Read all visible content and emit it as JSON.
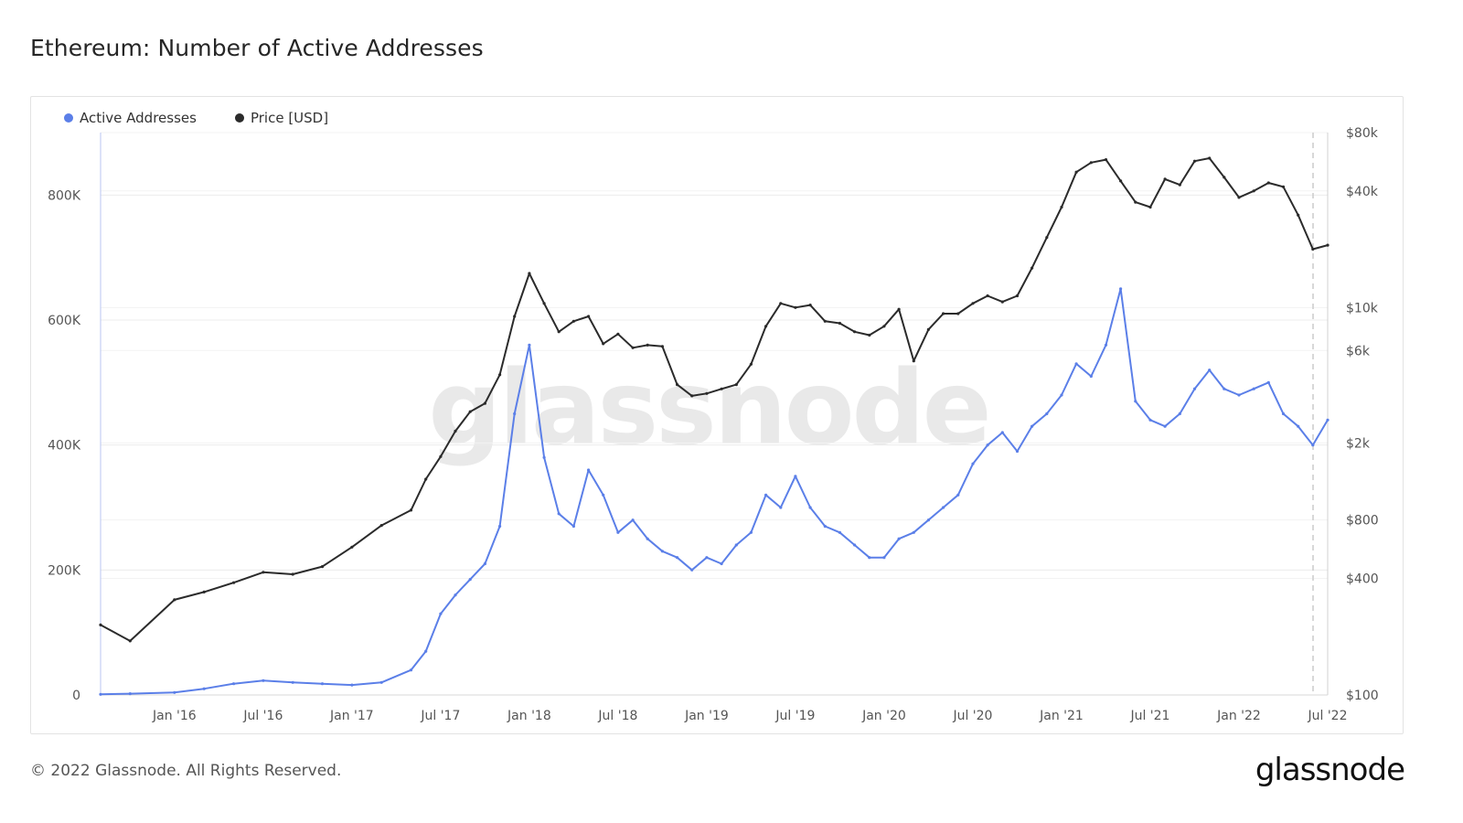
{
  "title": "Ethereum: Number of Active Addresses",
  "footer": "© 2022 Glassnode. All Rights Reserved.",
  "brand": "glassnode",
  "watermark": "glassnode",
  "chart_data": {
    "type": "line",
    "title": "Ethereum: Number of Active Addresses",
    "series": [
      {
        "name": "Active Addresses",
        "color": "#5b7fe8",
        "axis": "left",
        "x": [
          "2015-08",
          "2015-10",
          "2016-01",
          "2016-03",
          "2016-05",
          "2016-07",
          "2016-09",
          "2016-11",
          "2017-01",
          "2017-03",
          "2017-05",
          "2017-06",
          "2017-07",
          "2017-08",
          "2017-09",
          "2017-10",
          "2017-11",
          "2017-12",
          "2018-01",
          "2018-02",
          "2018-03",
          "2018-04",
          "2018-05",
          "2018-06",
          "2018-07",
          "2018-08",
          "2018-09",
          "2018-10",
          "2018-11",
          "2018-12",
          "2019-01",
          "2019-02",
          "2019-03",
          "2019-04",
          "2019-05",
          "2019-06",
          "2019-07",
          "2019-08",
          "2019-09",
          "2019-10",
          "2019-11",
          "2019-12",
          "2020-01",
          "2020-02",
          "2020-03",
          "2020-04",
          "2020-05",
          "2020-06",
          "2020-07",
          "2020-08",
          "2020-09",
          "2020-10",
          "2020-11",
          "2020-12",
          "2021-01",
          "2021-02",
          "2021-03",
          "2021-04",
          "2021-05",
          "2021-06",
          "2021-07",
          "2021-08",
          "2021-09",
          "2021-10",
          "2021-11",
          "2021-12",
          "2022-01",
          "2022-02",
          "2022-03",
          "2022-04",
          "2022-05",
          "2022-06",
          "2022-07"
        ],
        "values": [
          1000,
          2000,
          4000,
          10000,
          18000,
          23000,
          20000,
          18000,
          16000,
          20000,
          40000,
          70000,
          130000,
          160000,
          185000,
          210000,
          270000,
          450000,
          560000,
          380000,
          290000,
          270000,
          360000,
          320000,
          260000,
          280000,
          250000,
          230000,
          220000,
          200000,
          220000,
          210000,
          240000,
          260000,
          320000,
          300000,
          350000,
          300000,
          270000,
          260000,
          240000,
          220000,
          220000,
          250000,
          260000,
          280000,
          300000,
          320000,
          370000,
          400000,
          420000,
          390000,
          430000,
          450000,
          480000,
          530000,
          510000,
          560000,
          650000,
          470000,
          440000,
          430000,
          450000,
          490000,
          520000,
          490000,
          480000,
          490000,
          500000,
          450000,
          430000,
          400000,
          440000
        ]
      },
      {
        "name": "Price [USD]",
        "color": "#2b2b2b",
        "axis": "right",
        "x": [
          "2015-08",
          "2015-10",
          "2016-01",
          "2016-03",
          "2016-05",
          "2016-07",
          "2016-09",
          "2016-11",
          "2017-01",
          "2017-03",
          "2017-05",
          "2017-06",
          "2017-07",
          "2017-08",
          "2017-09",
          "2017-10",
          "2017-11",
          "2017-12",
          "2018-01",
          "2018-02",
          "2018-03",
          "2018-04",
          "2018-05",
          "2018-06",
          "2018-07",
          "2018-08",
          "2018-09",
          "2018-10",
          "2018-11",
          "2018-12",
          "2019-01",
          "2019-02",
          "2019-03",
          "2019-04",
          "2019-05",
          "2019-06",
          "2019-07",
          "2019-08",
          "2019-09",
          "2019-10",
          "2019-11",
          "2019-12",
          "2020-01",
          "2020-02",
          "2020-03",
          "2020-04",
          "2020-05",
          "2020-06",
          "2020-07",
          "2020-08",
          "2020-09",
          "2020-10",
          "2020-11",
          "2020-12",
          "2021-01",
          "2021-02",
          "2021-03",
          "2021-04",
          "2021-05",
          "2021-06",
          "2021-07",
          "2021-08",
          "2021-09",
          "2021-10",
          "2021-11",
          "2021-12",
          "2022-01",
          "2022-02",
          "2022-03",
          "2022-04",
          "2022-05",
          "2022-06",
          "2022-07"
        ],
        "values": [
          230,
          190,
          310,
          340,
          380,
          430,
          420,
          460,
          580,
          750,
          900,
          1300,
          1700,
          2300,
          2900,
          3200,
          4500,
          9000,
          15000,
          10500,
          7500,
          8500,
          9000,
          6500,
          7300,
          6200,
          6400,
          6300,
          4000,
          3500,
          3600,
          3800,
          4000,
          5100,
          8000,
          10500,
          10000,
          10300,
          8500,
          8300,
          7500,
          7200,
          8000,
          9800,
          5300,
          7700,
          9300,
          9300,
          10500,
          11500,
          10700,
          11500,
          16000,
          23000,
          33000,
          50000,
          56000,
          58000,
          45000,
          35000,
          33000,
          46000,
          43000,
          57000,
          59000,
          47000,
          37000,
          40000,
          44000,
          42000,
          30000,
          20000,
          21000
        ]
      }
    ],
    "x_ticks": [
      "Jan '16",
      "Jul '16",
      "Jan '17",
      "Jul '17",
      "Jan '18",
      "Jul '18",
      "Jan '19",
      "Jul '19",
      "Jan '20",
      "Jul '20",
      "Jan '21",
      "Jul '21",
      "Jan '22",
      "Jul '22"
    ],
    "x_tick_dates": [
      "2016-01",
      "2016-07",
      "2017-01",
      "2017-07",
      "2018-01",
      "2018-07",
      "2019-01",
      "2019-07",
      "2020-01",
      "2020-07",
      "2021-01",
      "2021-07",
      "2022-01",
      "2022-07"
    ],
    "x_range": [
      "2015-08",
      "2022-07"
    ],
    "y_left": {
      "ticks": [
        "0",
        "200K",
        "400K",
        "600K",
        "800K"
      ],
      "tick_values": [
        0,
        200000,
        400000,
        600000,
        800000
      ],
      "range": [
        0,
        900000
      ]
    },
    "y_right": {
      "scale": "log",
      "ticks": [
        "$100",
        "$400",
        "$800",
        "$2k",
        "$6k",
        "$10k",
        "$40k",
        "$80k"
      ],
      "tick_values": [
        100,
        400,
        800,
        2000,
        6000,
        10000,
        40000,
        80000
      ],
      "range": [
        100,
        80000
      ]
    },
    "legend_position": "top-left",
    "grid": true
  }
}
